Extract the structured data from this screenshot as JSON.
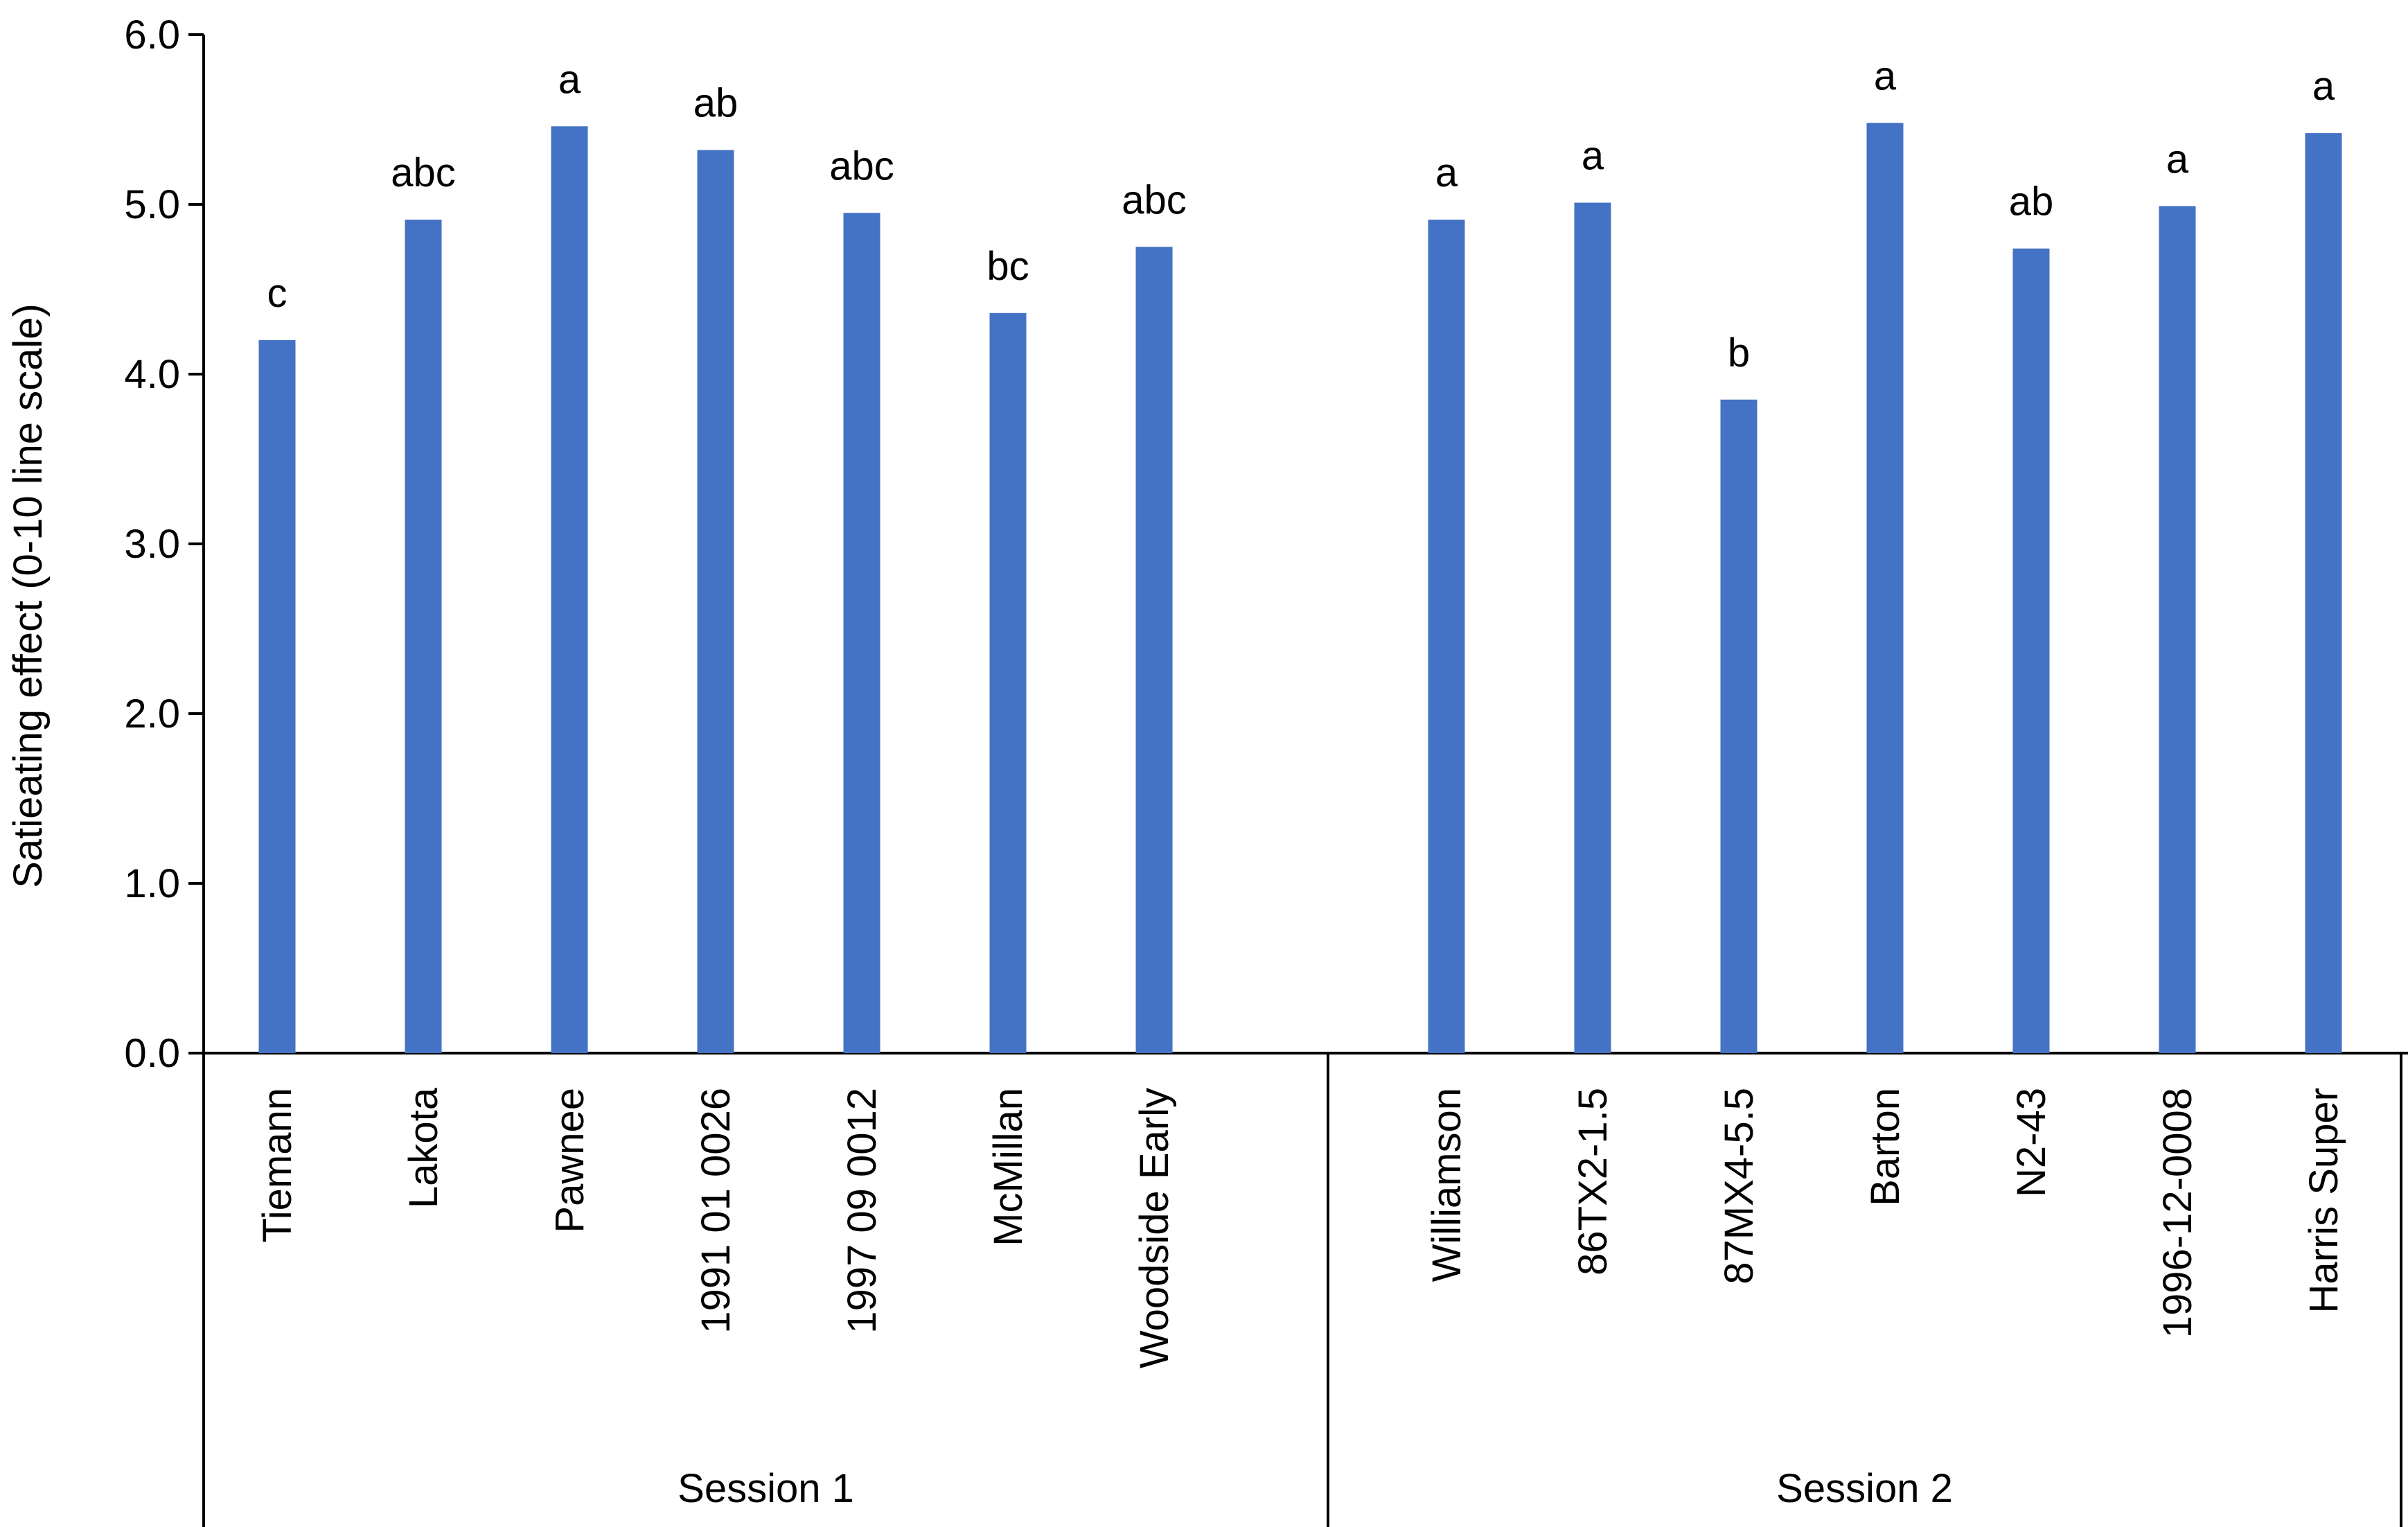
{
  "chart_data": {
    "type": "bar",
    "title": "",
    "xlabel": "",
    "ylabel": "Satieating effect (0-10 line scale)",
    "ylim": [
      0,
      6
    ],
    "y_ticks": [
      "0.0",
      "1.0",
      "2.0",
      "3.0",
      "4.0",
      "5.0",
      "6.0"
    ],
    "grid": false,
    "legend": "none",
    "bar_color": "#4472C4",
    "groups": [
      {
        "name": "Session 1",
        "categories": [
          "Tiemann",
          "Lakota",
          "Pawnee",
          "1991 01 0026",
          "1997 09 0012",
          "McMillan",
          "Woodside Early"
        ],
        "values": [
          4.2,
          4.91,
          5.46,
          5.32,
          4.95,
          4.36,
          4.75
        ],
        "significance": [
          "c",
          "abc",
          "a",
          "ab",
          "abc",
          "bc",
          "abc"
        ]
      },
      {
        "name": "Session 2",
        "categories": [
          "Williamson",
          "86TX2-1.5",
          "87MX4-5.5",
          "Barton",
          "N2-43",
          "1996-12-0008",
          "Harris Super"
        ],
        "values": [
          4.91,
          5.01,
          3.85,
          5.48,
          4.74,
          4.99,
          5.42
        ],
        "significance": [
          "a",
          "a",
          "b",
          "a",
          "ab",
          "a",
          "a"
        ]
      }
    ]
  }
}
